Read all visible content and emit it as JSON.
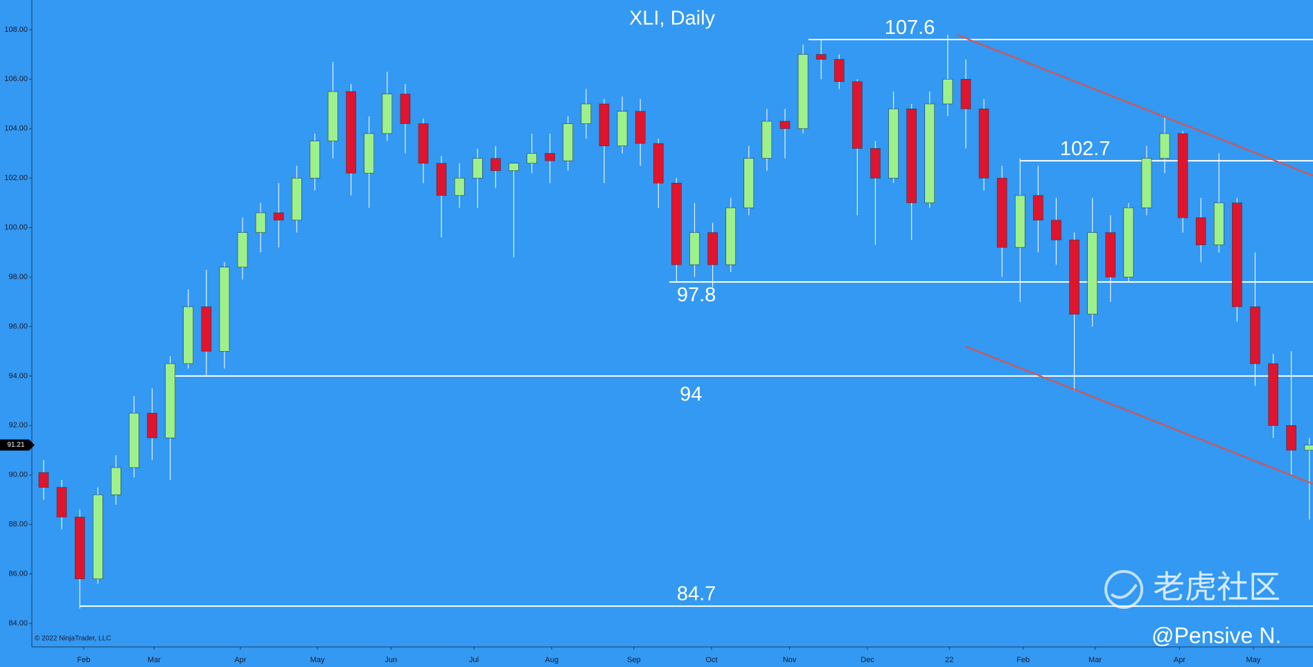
{
  "chart_data": {
    "type": "candlestick",
    "title": "XLI, Daily",
    "up_color": "#9ef08a",
    "down_color": "#e0142c",
    "wick_color": "#e8f4ff",
    "xlim": [
      -0.65,
      70.2
    ],
    "ylim": [
      83.05,
      109.2
    ],
    "yticks": [
      {
        "value": 84,
        "label": "84.00"
      },
      {
        "value": 86,
        "label": "86.00"
      },
      {
        "value": 88,
        "label": "88.00"
      },
      {
        "value": 90,
        "label": "90.00"
      },
      {
        "value": 92,
        "label": "92.00"
      },
      {
        "value": 94,
        "label": "94.00"
      },
      {
        "value": 96,
        "label": "96.00"
      },
      {
        "value": 98,
        "label": "98.00"
      },
      {
        "value": 100,
        "label": "100.00"
      },
      {
        "value": 102,
        "label": "102.00"
      },
      {
        "value": 104,
        "label": "104.00"
      },
      {
        "value": 106,
        "label": "106.00"
      },
      {
        "value": 108,
        "label": "108.00"
      }
    ],
    "xticks": [
      {
        "value": 2.22,
        "label": "Feb"
      },
      {
        "value": 6.11,
        "label": "Mar"
      },
      {
        "value": 10.88,
        "label": "Apr"
      },
      {
        "value": 15.14,
        "label": "May"
      },
      {
        "value": 19.21,
        "label": "Jun"
      },
      {
        "value": 23.8,
        "label": "Jul"
      },
      {
        "value": 28.1,
        "label": "Aug"
      },
      {
        "value": 32.64,
        "label": "Sep"
      },
      {
        "value": 36.94,
        "label": "Oct"
      },
      {
        "value": 41.25,
        "label": "Nov"
      },
      {
        "value": 45.56,
        "label": "Dec"
      },
      {
        "value": 50.09,
        "label": "22"
      },
      {
        "value": 54.17,
        "label": "Feb"
      },
      {
        "value": 58.15,
        "label": "Mar"
      },
      {
        "value": 62.82,
        "label": "Apr"
      },
      {
        "value": 66.9,
        "label": "May"
      }
    ],
    "candles": {
      "open": [
        90.1,
        89.5,
        88.3,
        85.8,
        89.2,
        90.3,
        92.5,
        91.5,
        94.5,
        96.8,
        95.0,
        98.4,
        99.8,
        100.6,
        100.3,
        102.0,
        103.5,
        105.5,
        102.2,
        103.8,
        105.4,
        104.2,
        102.6,
        101.3,
        102.0,
        102.8,
        102.3,
        102.6,
        103.0,
        102.7,
        104.2,
        105.0,
        103.3,
        104.7,
        103.4,
        101.8,
        98.5,
        99.8,
        98.5,
        100.8,
        102.8,
        104.3,
        104.0,
        107.0,
        106.8,
        105.9,
        103.2,
        102.0,
        104.8,
        101.0,
        105.0,
        106.0,
        104.8,
        102.0,
        99.2,
        101.3,
        100.3,
        99.5,
        96.5,
        99.8,
        98.0,
        100.8,
        102.8,
        103.8,
        100.4,
        99.3,
        101.0,
        96.8,
        94.5,
        92.0,
        91.0
      ],
      "high": [
        90.6,
        89.8,
        88.6,
        89.5,
        90.8,
        93.2,
        93.5,
        94.8,
        97.5,
        98.3,
        98.6,
        100.4,
        101.0,
        101.8,
        102.5,
        103.8,
        106.7,
        105.8,
        104.5,
        106.3,
        105.8,
        104.4,
        102.9,
        102.6,
        103.2,
        103.3,
        102.5,
        103.8,
        103.8,
        104.5,
        105.6,
        105.2,
        105.3,
        105.2,
        103.6,
        102.0,
        101.0,
        100.2,
        101.2,
        103.3,
        104.8,
        104.8,
        107.4,
        107.6,
        107.0,
        106.0,
        103.5,
        105.5,
        105.0,
        105.5,
        107.8,
        106.8,
        105.2,
        102.5,
        102.8,
        102.5,
        101.2,
        99.8,
        101.2,
        100.5,
        101.0,
        103.3,
        104.5,
        103.9,
        101.2,
        103.0,
        101.2,
        99.0,
        94.9,
        95.0,
        91.5
      ],
      "low": [
        89.0,
        87.8,
        84.6,
        85.6,
        88.8,
        89.9,
        90.6,
        89.8,
        94.3,
        94.0,
        94.3,
        97.9,
        99.0,
        99.2,
        99.8,
        101.5,
        102.8,
        101.3,
        100.8,
        103.5,
        103.0,
        101.8,
        99.6,
        100.8,
        100.8,
        101.6,
        98.8,
        102.2,
        101.8,
        102.3,
        103.6,
        101.8,
        103.0,
        102.5,
        100.8,
        97.8,
        98.0,
        97.6,
        98.2,
        100.5,
        102.3,
        102.8,
        103.8,
        106.0,
        105.6,
        100.5,
        99.3,
        101.8,
        99.5,
        100.8,
        104.5,
        103.2,
        101.5,
        98.0,
        97.0,
        99.0,
        98.5,
        93.4,
        96.0,
        97.0,
        97.8,
        100.5,
        102.2,
        99.8,
        98.6,
        99.0,
        96.2,
        93.6,
        91.5,
        90.0,
        88.2
      ],
      "close": [
        89.5,
        88.3,
        85.8,
        89.2,
        90.3,
        92.5,
        91.5,
        94.5,
        96.8,
        95.0,
        98.4,
        99.8,
        100.6,
        100.3,
        102.0,
        103.5,
        105.5,
        102.2,
        103.8,
        105.4,
        104.2,
        102.6,
        101.3,
        102.0,
        102.8,
        102.3,
        102.6,
        103.0,
        102.7,
        104.2,
        105.0,
        103.3,
        104.7,
        103.4,
        101.8,
        98.5,
        99.8,
        98.5,
        100.8,
        102.8,
        104.3,
        104.0,
        107.0,
        106.8,
        105.9,
        103.2,
        102.0,
        104.8,
        101.0,
        105.0,
        106.0,
        104.8,
        102.0,
        99.2,
        101.3,
        100.3,
        99.5,
        96.5,
        99.8,
        98.0,
        100.8,
        102.8,
        103.8,
        100.4,
        99.3,
        101.0,
        96.8,
        94.5,
        92.0,
        91.0,
        91.21
      ]
    },
    "levels": [
      {
        "value": 107.6,
        "x0": 42.3
      },
      {
        "value": 102.7,
        "x0": 54.0
      },
      {
        "value": 97.8,
        "x0": 34.6
      },
      {
        "value": 94,
        "x0": 7.1
      },
      {
        "value": 84.7,
        "x0": 2.0
      }
    ],
    "level_color": "#ffffff",
    "trendlines": [
      {
        "x": [
          50.5,
          70.2
        ],
        "y": [
          107.8,
          102.1
        ]
      },
      {
        "x": [
          51.0,
          70.2
        ],
        "y": [
          95.19,
          89.64
        ]
      }
    ],
    "trend_color": "#d9534f",
    "last_price": 91.21,
    "copyright": "© 2022 NinjaTrader, LLC",
    "watermark": "老虎社区",
    "author": "@Pensive N."
  }
}
